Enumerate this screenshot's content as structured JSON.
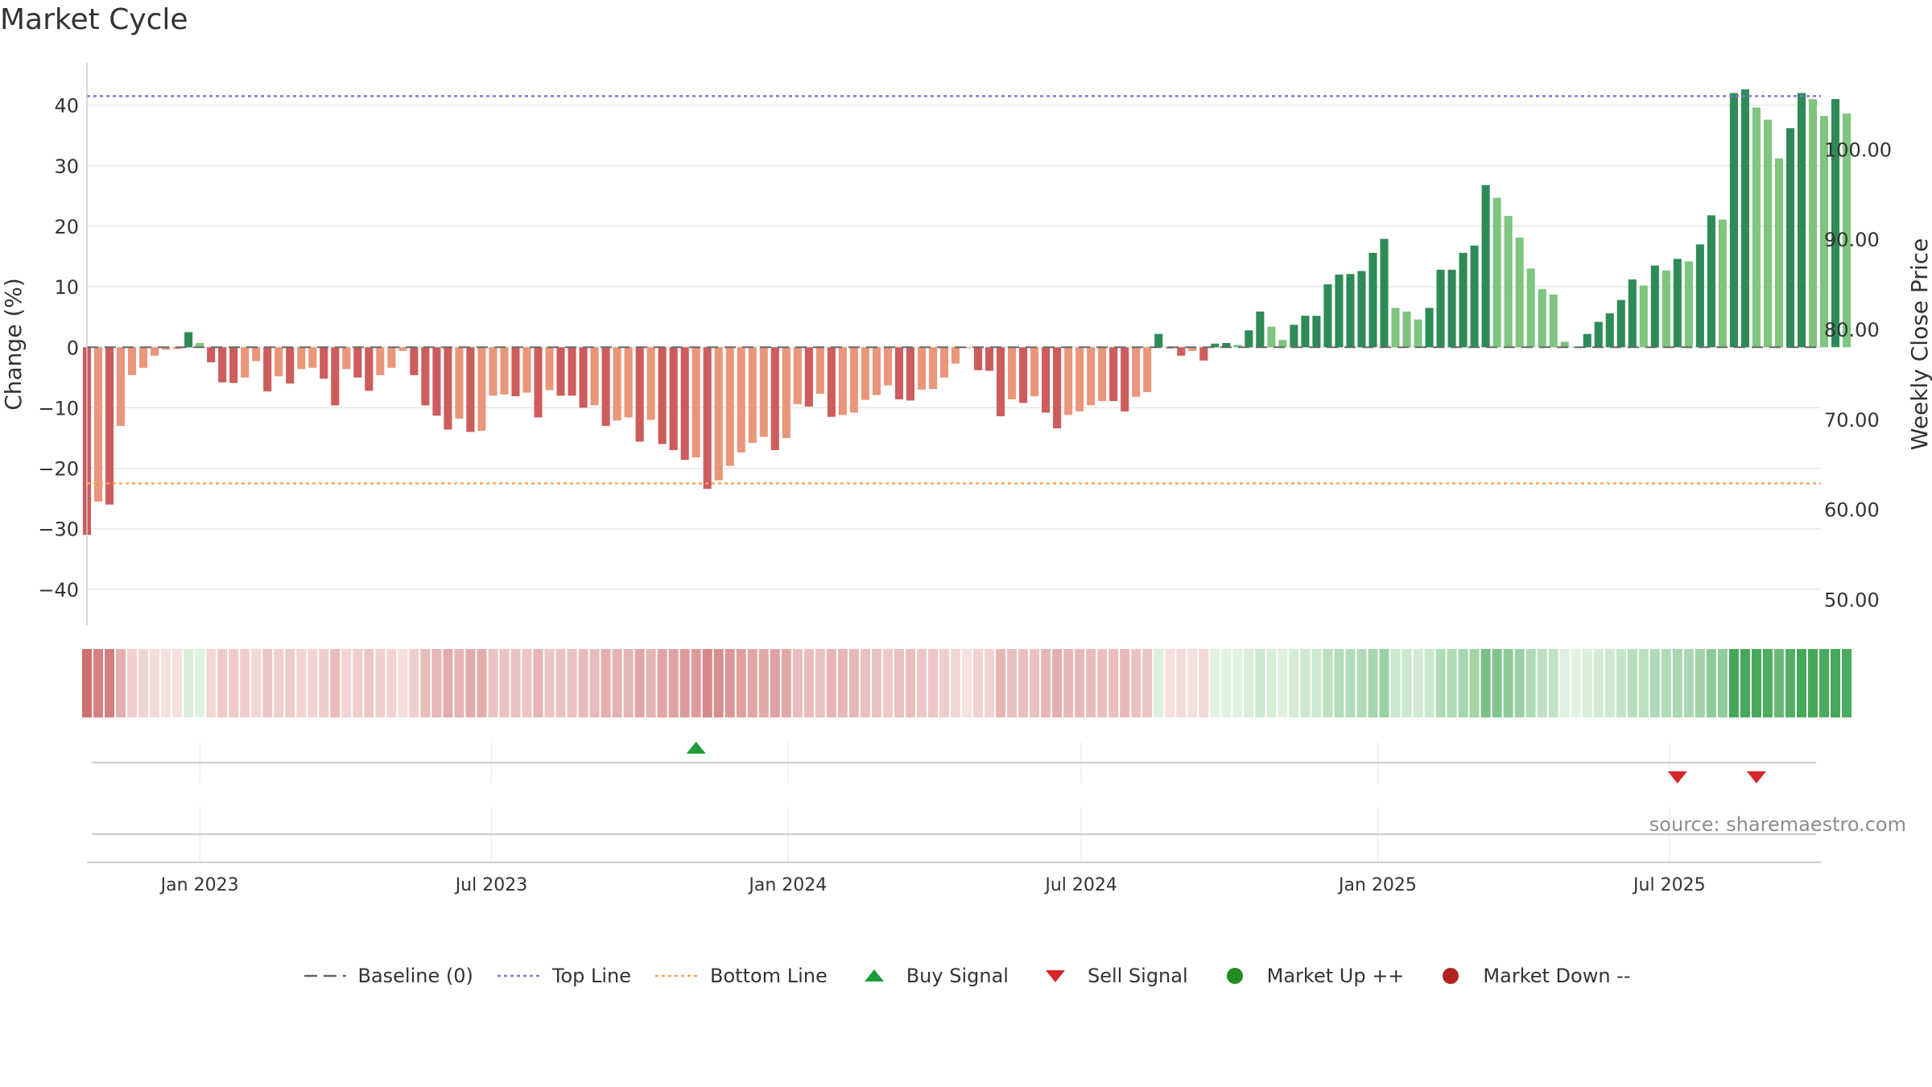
{
  "title": "Market Cycle",
  "source_note": "source: sharemaestro.com",
  "colors": {
    "green_dark": "#2e8b57",
    "green_light": "#7fc47f",
    "red_dark": "#cd5c5c",
    "red_light": "#e9967a",
    "top_line": "#9370db",
    "bottom_line": "#f4a460",
    "baseline": "#666666",
    "buy": "#1e9c3c",
    "sell": "#d62728",
    "market_up": "#228b22",
    "market_down": "#b22222",
    "grid": "#e6e6e6"
  },
  "legend": [
    {
      "label": "Baseline (0)",
      "kind": "dash",
      "color": "#666666",
      "icon": "baseline-dash-icon"
    },
    {
      "label": "Top Line",
      "kind": "dot",
      "color": "#9370db",
      "icon": "top-line-dotted-icon"
    },
    {
      "label": "Bottom Line",
      "kind": "dot",
      "color": "#f4a460",
      "icon": "bottom-line-dotted-icon"
    },
    {
      "label": "Buy Signal",
      "kind": "tri-up",
      "color": "#1e9c3c",
      "icon": "buy-triangle-icon"
    },
    {
      "label": "Sell Signal",
      "kind": "tri-down",
      "color": "#d62728",
      "icon": "sell-triangle-icon"
    },
    {
      "label": "Market Up ++",
      "kind": "circle",
      "color": "#228b22",
      "icon": "market-up-circle-icon"
    },
    {
      "label": "Market Down --",
      "kind": "circle",
      "color": "#b22222",
      "icon": "market-down-circle-icon"
    }
  ],
  "chart_data": {
    "type": "bar",
    "title": "Market Cycle",
    "ylabel": "Change (%)",
    "y2label": "Weekly Close Price",
    "ylim": [
      -46,
      47
    ],
    "y_ticks": [
      40,
      30,
      20,
      10,
      0,
      -10,
      -20,
      -30,
      -40
    ],
    "y_tick_labels": [
      "40",
      "30",
      "20",
      "10",
      "0",
      "−10",
      "−20",
      "−30",
      "−40"
    ],
    "y2lim": [
      47.1,
      109.6
    ],
    "y2_ticks": [
      100,
      90,
      80,
      70,
      60,
      50
    ],
    "y2_tick_labels": [
      "100.00",
      "90.00",
      "80.00",
      "70.00",
      "60.00",
      "50.00"
    ],
    "x_range": [
      "2022-10-23",
      "2025-10-03"
    ],
    "x_ticks": [
      "2023-01-01",
      "2023-07-01",
      "2024-01-01",
      "2024-07-01",
      "2025-01-01",
      "2025-07-01"
    ],
    "x_tick_labels": [
      "Jan 2023",
      "Jul 2023",
      "Jan 2024",
      "Jul 2024",
      "Jan 2025",
      "Jul 2025"
    ],
    "top_line": 41.5,
    "bottom_line": -22.5,
    "baseline": 0,
    "bar_start": "2022-10-23",
    "bar_interval_days": 7,
    "values": [
      -31,
      -25.5,
      -26,
      -13,
      -4.6,
      -3.4,
      -1.4,
      -0.4,
      -0.3,
      2.5,
      0.7,
      -2.5,
      -5.8,
      -5.9,
      -5,
      -2.3,
      -7.3,
      -4.8,
      -6,
      -3.6,
      -3.4,
      -5.2,
      -9.6,
      -3.6,
      -5,
      -7.2,
      -4.6,
      -3.4,
      -0.6,
      -4.6,
      -9.6,
      -11.3,
      -13.6,
      -11.8,
      -14,
      -13.8,
      -8,
      -7.8,
      -8.1,
      -7.5,
      -11.6,
      -7.1,
      -8,
      -8,
      -10,
      -9.6,
      -13,
      -12.1,
      -11.6,
      -15.6,
      -12,
      -16,
      -17,
      -18.6,
      -18.2,
      -23.4,
      -22,
      -19.6,
      -17.4,
      -15.8,
      -14.8,
      -17,
      -15,
      -9.4,
      -9.8,
      -7.7,
      -11.5,
      -11.2,
      -10.8,
      -8.7,
      -7.9,
      -6.3,
      -8.6,
      -8.8,
      -7,
      -6.9,
      -5,
      -2.7,
      -0.1,
      -3.8,
      -3.9,
      -11.4,
      -8.6,
      -9.2,
      -8.1,
      -10.8,
      -13.4,
      -11.2,
      -10.6,
      -9.6,
      -8.9,
      -8.9,
      -10.6,
      -8.2,
      -7.4,
      2.2,
      -0.2,
      -1.4,
      -0.6,
      -2.2,
      0.6,
      0.7,
      0.4,
      2.8,
      5.9,
      3.4,
      1.2,
      3.7,
      5.2,
      5.2,
      10.4,
      12,
      12.1,
      12.6,
      15.6,
      17.9,
      6.5,
      5.9,
      4.6,
      6.5,
      12.8,
      12.8,
      15.6,
      16.8,
      26.8,
      24.7,
      21.7,
      18.1,
      13,
      9.6,
      8.7,
      0.9,
      0.1,
      2.2,
      4.2,
      5.6,
      7.8,
      11.2,
      10.2,
      13.5,
      12.7,
      14.6,
      14.2,
      17,
      21.8,
      21.1,
      42,
      42.6,
      39.6,
      37.6,
      31.2,
      36.2,
      42,
      41,
      38.2,
      41,
      38.6
    ],
    "strength_index_note": "heat strip colored by change value",
    "signals": [
      {
        "type": "buy",
        "date": "2023-11-05"
      },
      {
        "type": "sell",
        "date": "2025-07-06"
      },
      {
        "type": "sell",
        "date": "2025-08-24"
      }
    ],
    "grid": true,
    "legend_position": "bottom"
  }
}
